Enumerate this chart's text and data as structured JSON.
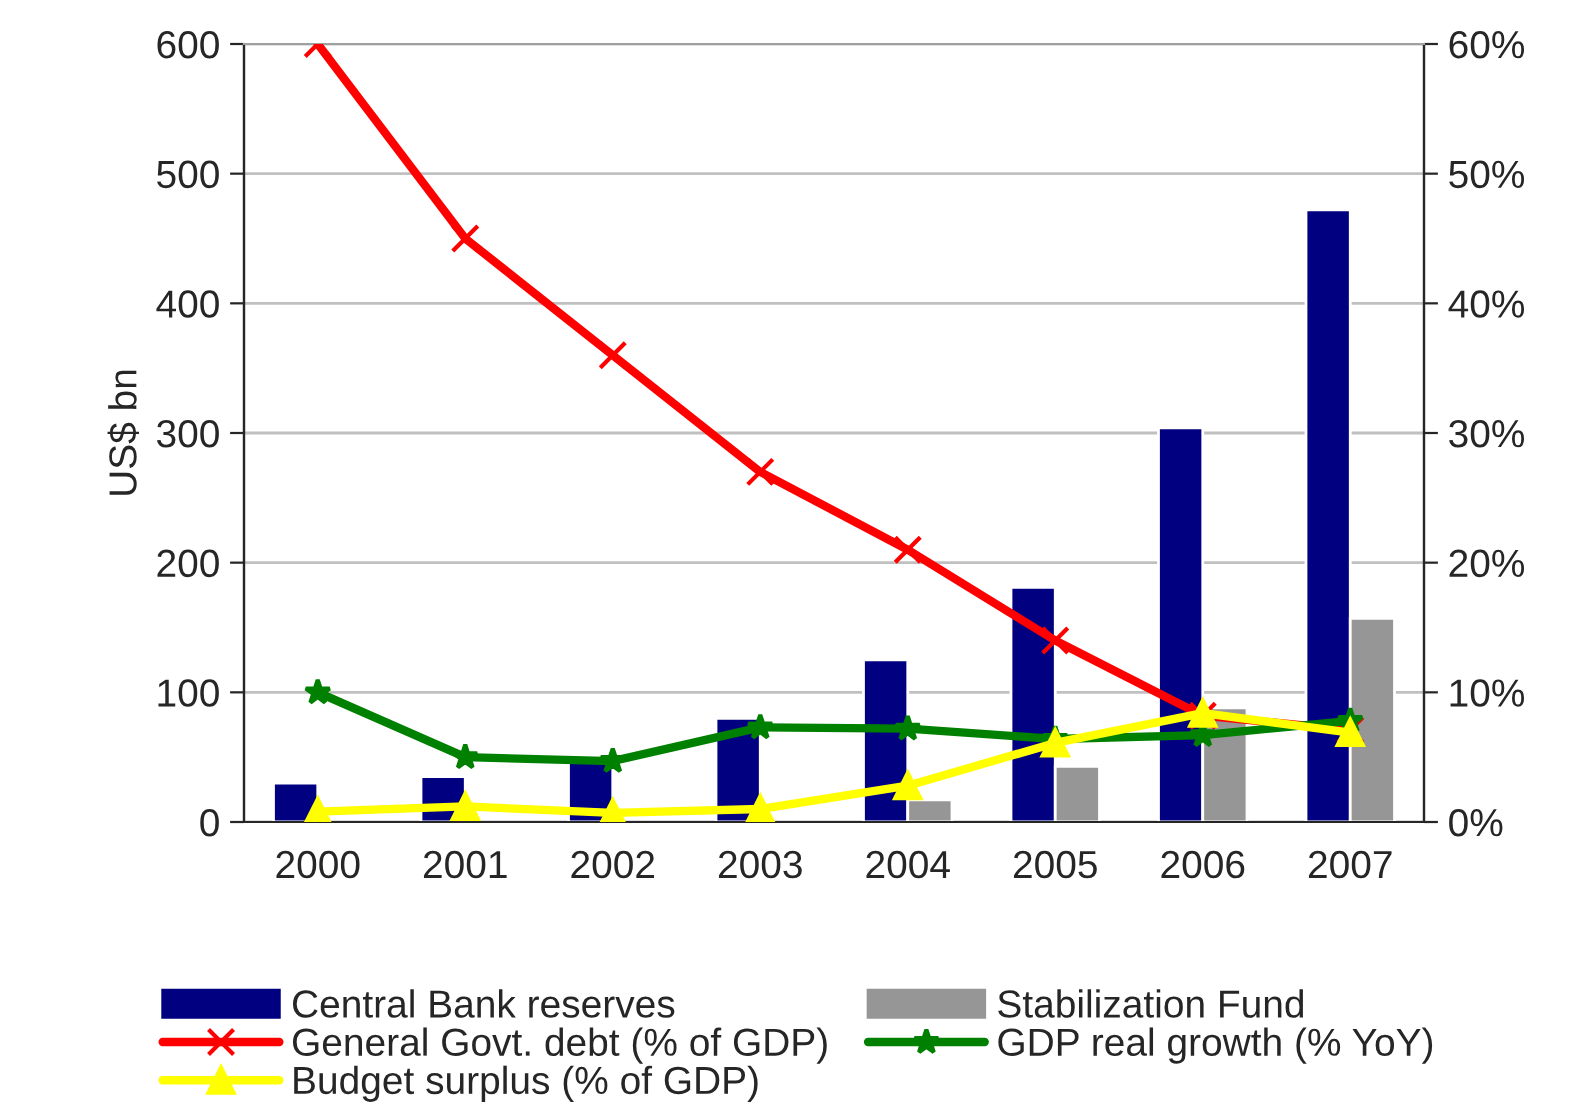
{
  "chart_data": {
    "type": "bar",
    "ylabel": "US$ bn",
    "categories": [
      "2000",
      "2001",
      "2002",
      "2003",
      "2004",
      "2005",
      "2006",
      "2007"
    ],
    "series": [
      {
        "name": "Central Bank reserves",
        "color": "#000080",
        "values": [
          30,
          35,
          47,
          80,
          125,
          181,
          304,
          472
        ]
      },
      {
        "name": "Stabilization Fund",
        "color": "#969696",
        "values": [
          null,
          null,
          null,
          null,
          17,
          43,
          88,
          157
        ]
      },
      {
        "name": "General Govt. debt (% of GDP)",
        "type": "line",
        "axis": "y2",
        "color": "#ff0000",
        "marker": "cross",
        "values": [
          60,
          45,
          36,
          27,
          21,
          14,
          8.2,
          7.1
        ]
      },
      {
        "name": "GDP real growth (% YoY)",
        "type": "line",
        "axis": "y2",
        "color": "#008000",
        "marker": "star",
        "values": [
          10,
          5.0,
          4.7,
          7.3,
          7.2,
          6.4,
          6.7,
          7.8
        ]
      },
      {
        "name": "Budget surplus (% of GDP)",
        "type": "line",
        "axis": "y2",
        "color": "#ffff00",
        "marker": "triangle",
        "values": [
          0.8,
          1.2,
          0.7,
          1.0,
          2.8,
          6.1,
          8.4,
          6.9
        ]
      }
    ],
    "ylim": [
      0,
      600
    ],
    "yticks": [
      0,
      100,
      200,
      300,
      400,
      500,
      600
    ],
    "y2lim": [
      0,
      60
    ],
    "y2ticks": [
      {
        "value": 0,
        "label": "0%"
      },
      {
        "value": 10,
        "label": "10%"
      },
      {
        "value": 20,
        "label": "20%"
      },
      {
        "value": 30,
        "label": "30%"
      },
      {
        "value": 40,
        "label": "40%"
      },
      {
        "value": 50,
        "label": "50%"
      },
      {
        "value": 60,
        "label": "60%"
      }
    ],
    "grid": "y",
    "legend": "bottom"
  }
}
